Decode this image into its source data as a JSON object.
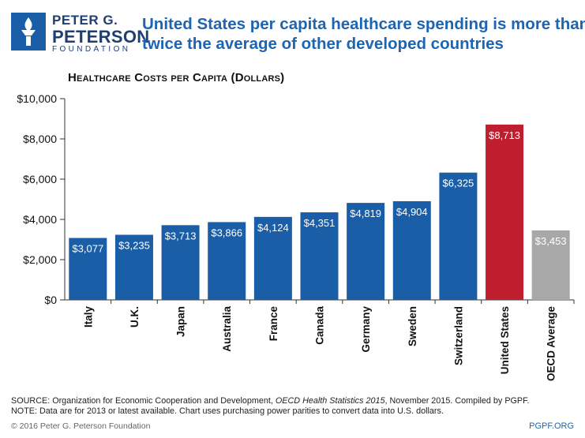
{
  "brand": {
    "line1": "PETER G.",
    "line2": "PETERSON",
    "line3": "FOUNDATION",
    "color": "#1a5ea8"
  },
  "headline": {
    "line1": "United States per capita healthcare spending is more than",
    "line2": "twice the average of other developed countries"
  },
  "chart_data": {
    "type": "bar",
    "title": "Healthcare Costs per Capita (Dollars)",
    "xlabel": "",
    "ylabel": "",
    "ylim": [
      0,
      10000
    ],
    "yticks": [
      0,
      2000,
      4000,
      6000,
      8000,
      10000
    ],
    "ytick_labels": [
      "$0",
      "$2,000",
      "$4,000",
      "$6,000",
      "$8,000",
      "$10,000"
    ],
    "categories": [
      "Italy",
      "U.K.",
      "Japan",
      "Australia",
      "France",
      "Canada",
      "Germany",
      "Sweden",
      "Switzerland",
      "United States",
      "OECD Average"
    ],
    "values": [
      3077,
      3235,
      3713,
      3866,
      4124,
      4351,
      4819,
      4904,
      6325,
      8713,
      3453
    ],
    "value_labels": [
      "$3,077",
      "$3,235",
      "$3,713",
      "$3,866",
      "$4,124",
      "$4,351",
      "$4,819",
      "$4,904",
      "$6,325",
      "$8,713",
      "$3,453"
    ],
    "colors": [
      "#1a5ea8",
      "#1a5ea8",
      "#1a5ea8",
      "#1a5ea8",
      "#1a5ea8",
      "#1a5ea8",
      "#1a5ea8",
      "#1a5ea8",
      "#1a5ea8",
      "#bf1e2e",
      "#a8a8a8"
    ],
    "grid": false,
    "legend": "none"
  },
  "footer": {
    "source_prefix": "SOURCE: Organization for Economic Cooperation and Development, ",
    "source_italic": "OECD Health Statistics 2015",
    "source_suffix": ", November 2015. Compiled by PGPF.",
    "note": "NOTE: Data are for 2013 or latest available. Chart uses purchasing power parities to convert data into U.S. dollars.",
    "copyright": "© 2016 Peter G. Peterson Foundation",
    "site": "PGPF.ORG"
  }
}
